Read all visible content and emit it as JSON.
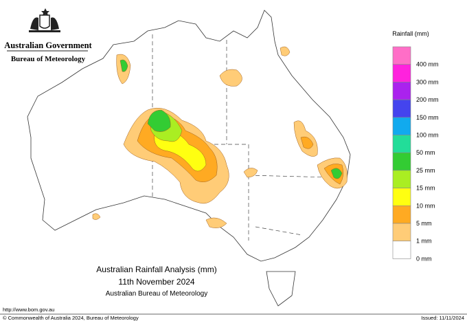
{
  "header": {
    "government": "Australian Government",
    "agency": "Bureau of Meteorology"
  },
  "legend": {
    "title": "Rainfall (mm)",
    "items": [
      {
        "label": "400 mm",
        "color": "#ff6ec7"
      },
      {
        "label": "300 mm",
        "color": "#ff22dd"
      },
      {
        "label": "200 mm",
        "color": "#aa22ee"
      },
      {
        "label": "150 mm",
        "color": "#4444ee"
      },
      {
        "label": "100 mm",
        "color": "#11aaee"
      },
      {
        "label": "50 mm",
        "color": "#22dd99"
      },
      {
        "label": "25 mm",
        "color": "#33cc33"
      },
      {
        "label": "15 mm",
        "color": "#aaee22"
      },
      {
        "label": "10 mm",
        "color": "#ffff11"
      },
      {
        "label": "5 mm",
        "color": "#ffaa22"
      },
      {
        "label": "1 mm",
        "color": "#ffcc77"
      },
      {
        "label": "0 mm",
        "color": "#ffffff"
      }
    ]
  },
  "map_title": {
    "line1": "Australian Rainfall Analysis (mm)",
    "line2": "11th November 2024",
    "line3": "Australian Bureau of Meteorology"
  },
  "footer": {
    "url": "http://www.bom.gov.au",
    "copyright": "© Commonwealth of Australia 2024, Bureau of Meteorology",
    "issued": "Issued: 11/11/2024"
  }
}
